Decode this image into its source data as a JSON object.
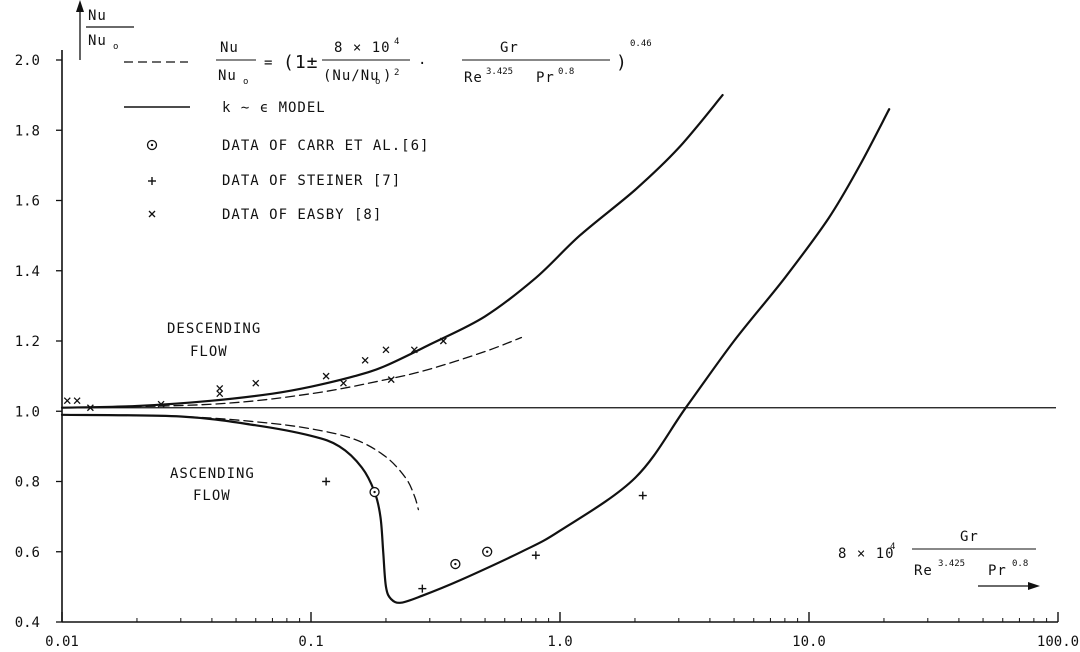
{
  "chart_data": {
    "type": "line",
    "x_scale": "log",
    "xlim": [
      0.01,
      100.0
    ],
    "ylim": [
      0.4,
      2.0
    ],
    "x_ticks": [
      "0.01",
      "0.1",
      "1.0",
      "10.0",
      "100.0"
    ],
    "y_ticks": [
      "0.4",
      "0.6",
      "0.8",
      "1.0",
      "1.2",
      "1.4",
      "1.6",
      "1.8",
      "2.0"
    ],
    "ylabel": {
      "num": "Nu",
      "den": "Nu",
      "den_sub": "o"
    },
    "xlabel": {
      "coef": "8 × 10",
      "coef_exp": "4",
      "num": "Gr",
      "den_a": "Re",
      "den_a_exp": "3.425",
      "den_b": "Pr",
      "den_b_exp": "0.8"
    },
    "legend": {
      "eq_label": {
        "num": "Nu",
        "den": "Nu",
        "den_sub": "o",
        "eq": "=",
        "open": "(1±",
        "f1_num": "8 × 10",
        "f1_num_exp": "4",
        "f1_den": "(Nu/Nu",
        "f1_den_sub": "o",
        "f1_den_tail": ")",
        "f1_den_exp": "2",
        "dot": "·",
        "f2_num": "Gr",
        "f2_den_a": "Re",
        "f2_den_a_exp": "3.425",
        "f2_den_b": "Pr",
        "f2_den_b_exp": "0.8",
        "close": ")",
        "close_exp": "0.46"
      },
      "model": "k ∼ ϵ MODEL",
      "carr": "DATA OF CARR ET AL.[6]",
      "steiner": "DATA OF STEINER  [7]",
      "easby": "DATA OF EASBY   [8]"
    },
    "annotations": {
      "descending": [
        "DESCENDING",
        "FLOW"
      ],
      "ascending": [
        "ASCENDING",
        "FLOW"
      ]
    },
    "reference_line_y": 1.01,
    "series": [
      {
        "style": "solid",
        "points": [
          [
            0.01,
            1.01
          ],
          [
            0.02,
            1.015
          ],
          [
            0.04,
            1.03
          ],
          [
            0.07,
            1.05
          ],
          [
            0.1,
            1.07
          ],
          [
            0.15,
            1.1
          ],
          [
            0.2,
            1.13
          ],
          [
            0.3,
            1.19
          ],
          [
            0.5,
            1.27
          ],
          [
            0.8,
            1.38
          ],
          [
            1.2,
            1.5
          ],
          [
            2.0,
            1.63
          ],
          [
            3.0,
            1.75
          ],
          [
            4.5,
            1.9
          ]
        ]
      },
      {
        "style": "dashed",
        "points": [
          [
            0.01,
            1.01
          ],
          [
            0.04,
            1.02
          ],
          [
            0.1,
            1.05
          ],
          [
            0.2,
            1.09
          ],
          [
            0.3,
            1.12
          ],
          [
            0.5,
            1.17
          ],
          [
            0.7,
            1.21
          ]
        ]
      },
      {
        "style": "dashed",
        "points": [
          [
            0.01,
            0.99
          ],
          [
            0.03,
            0.985
          ],
          [
            0.06,
            0.97
          ],
          [
            0.1,
            0.95
          ],
          [
            0.15,
            0.92
          ],
          [
            0.2,
            0.87
          ],
          [
            0.24,
            0.81
          ],
          [
            0.26,
            0.76
          ],
          [
            0.27,
            0.72
          ]
        ]
      },
      {
        "style": "solid",
        "points": [
          [
            0.01,
            0.99
          ],
          [
            0.03,
            0.985
          ],
          [
            0.06,
            0.96
          ],
          [
            0.1,
            0.93
          ],
          [
            0.13,
            0.9
          ],
          [
            0.16,
            0.84
          ],
          [
            0.18,
            0.77
          ],
          [
            0.19,
            0.7
          ],
          [
            0.195,
            0.6
          ],
          [
            0.2,
            0.5
          ],
          [
            0.21,
            0.465
          ],
          [
            0.23,
            0.455
          ],
          [
            0.28,
            0.475
          ],
          [
            0.4,
            0.52
          ],
          [
            0.7,
            0.6
          ],
          [
            1.0,
            0.66
          ],
          [
            2.0,
            0.81
          ],
          [
            3.2,
            1.01
          ],
          [
            5.0,
            1.2
          ],
          [
            8.0,
            1.38
          ],
          [
            12.0,
            1.55
          ],
          [
            16.0,
            1.7
          ],
          [
            21.0,
            1.86
          ]
        ]
      }
    ],
    "markers": {
      "carr": [
        [
          0.18,
          0.77
        ],
        [
          0.38,
          0.565
        ],
        [
          0.51,
          0.6
        ]
      ],
      "steiner": [
        [
          0.115,
          0.8
        ],
        [
          0.28,
          0.495
        ],
        [
          0.8,
          0.59
        ],
        [
          2.15,
          0.76
        ]
      ],
      "easby": [
        [
          0.0105,
          1.03
        ],
        [
          0.0115,
          1.03
        ],
        [
          0.013,
          1.01
        ],
        [
          0.025,
          1.02
        ],
        [
          0.043,
          1.065
        ],
        [
          0.043,
          1.05
        ],
        [
          0.06,
          1.08
        ],
        [
          0.115,
          1.1
        ],
        [
          0.135,
          1.08
        ],
        [
          0.165,
          1.145
        ],
        [
          0.2,
          1.175
        ],
        [
          0.21,
          1.09
        ],
        [
          0.26,
          1.175
        ],
        [
          0.34,
          1.2
        ]
      ]
    }
  }
}
